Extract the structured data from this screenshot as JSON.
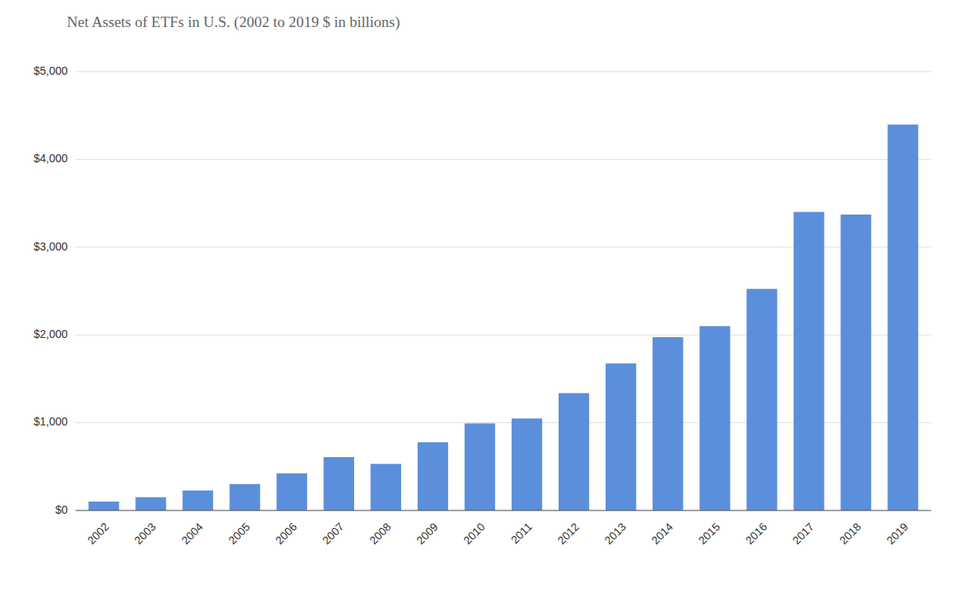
{
  "chart_data": {
    "type": "bar",
    "title": "Net Assets of ETFs in U.S. (2002 to 2019 $ in billions)",
    "categories": [
      "2002",
      "2003",
      "2004",
      "2005",
      "2006",
      "2007",
      "2008",
      "2009",
      "2010",
      "2011",
      "2012",
      "2013",
      "2014",
      "2015",
      "2016",
      "2017",
      "2018",
      "2019"
    ],
    "values": [
      102,
      151,
      228,
      301,
      423,
      608,
      531,
      777,
      992,
      1048,
      1337,
      1675,
      1974,
      2100,
      2524,
      3401,
      3371,
      4396
    ],
    "color": "#5B8EDB",
    "ylim": [
      0,
      5000
    ],
    "yticks": [
      {
        "value": 0,
        "label": "$0"
      },
      {
        "value": 1000,
        "label": "$1,000"
      },
      {
        "value": 2000,
        "label": "$2,000"
      },
      {
        "value": 3000,
        "label": "$3,000"
      },
      {
        "value": 4000,
        "label": "$4,000"
      },
      {
        "value": 5000,
        "label": "$5,000"
      }
    ],
    "grid": true
  }
}
